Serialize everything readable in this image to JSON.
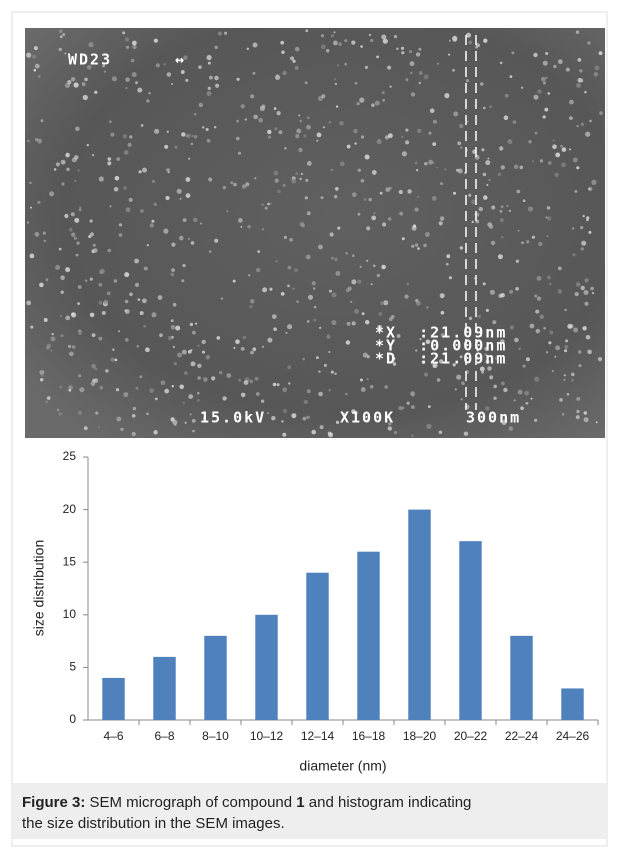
{
  "sem_image": {
    "working_distance": "WD23",
    "arrow": "↔",
    "x_readout": "*X  :21.09nm",
    "y_readout": "*Y  :0.000nm",
    "d_readout": "*D  :21.09nm",
    "voltage": "15.0kV",
    "magnification": "X100K",
    "scale": "300nm"
  },
  "chart_data": {
    "type": "bar",
    "categories": [
      "4–6",
      "6–8",
      "8–10",
      "10–12",
      "12–14",
      "16–18",
      "18–20",
      "20–22",
      "22–24",
      "24–26"
    ],
    "values": [
      4,
      6,
      8,
      10,
      14,
      16,
      20,
      17,
      8,
      3
    ],
    "color": "#4f81bd",
    "ylim": [
      0,
      25
    ],
    "yticks": [
      0,
      5,
      10,
      15,
      20,
      25
    ],
    "grid": false,
    "x_label": "diameter (nm)",
    "y_label": "size distribution"
  },
  "caption": {
    "label": "Figure 3:",
    "text_1": " SEM micrograph of compound ",
    "compound": "1",
    "text_2": " and histogram indicating",
    "text_3": "the size distribution in the SEM images."
  }
}
